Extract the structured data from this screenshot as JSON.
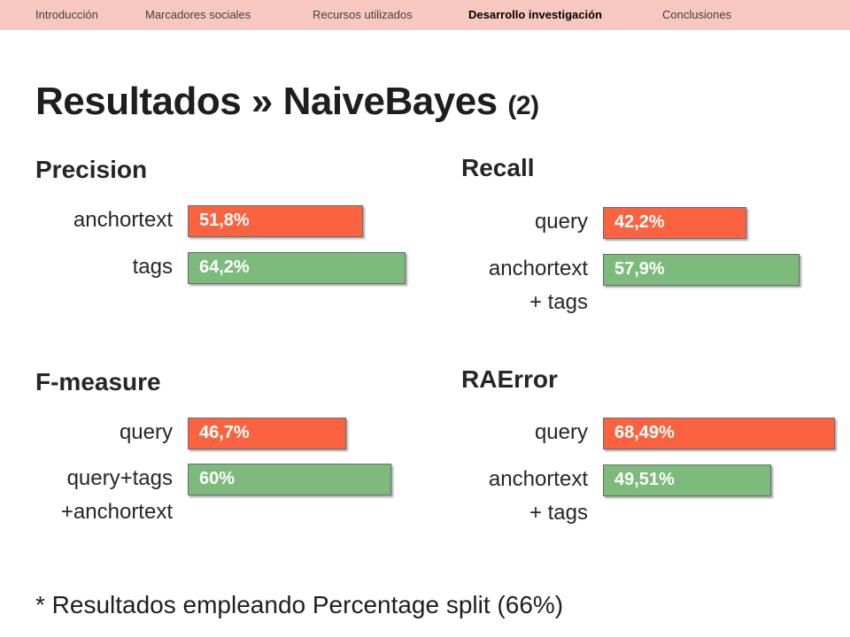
{
  "nav": {
    "items": [
      {
        "label": "Introducción",
        "active": false
      },
      {
        "label": "Marcadores sociales",
        "active": false
      },
      {
        "label": "Recursos utilizados",
        "active": false
      },
      {
        "label": "Desarrollo investigación",
        "active": true
      },
      {
        "label": "Conclusiones",
        "active": false
      }
    ]
  },
  "title": {
    "main": "Resultados » NaiveBayes",
    "suffix": "(2)"
  },
  "footnote": "* Resultados empleando Percentage split (66%)",
  "colors": {
    "orange": "#fb6340",
    "green": "#7cbb7c",
    "nav_bg": "#f8c8c0"
  },
  "chart_data": [
    {
      "type": "bar",
      "title": "Precision",
      "categories": [
        "anchortext",
        "tags"
      ],
      "values": [
        51.8,
        64.2
      ],
      "labels": [
        "51,8%",
        "64,2%"
      ],
      "colors": [
        "#fb6340",
        "#7cbb7c"
      ]
    },
    {
      "type": "bar",
      "title": "Recall",
      "categories": [
        "query",
        "anchortext\n+ tags"
      ],
      "values": [
        42.2,
        57.9
      ],
      "labels": [
        "42,2%",
        "57,9%"
      ],
      "colors": [
        "#fb6340",
        "#7cbb7c"
      ]
    },
    {
      "type": "bar",
      "title": "F-measure",
      "categories": [
        "query",
        "query+tags\n+anchortext"
      ],
      "values": [
        46.7,
        60
      ],
      "labels": [
        "46,7%",
        "60%"
      ],
      "colors": [
        "#fb6340",
        "#7cbb7c"
      ]
    },
    {
      "type": "bar",
      "title": "RAError",
      "categories": [
        "query",
        "anchortext\n+ tags"
      ],
      "values": [
        68.49,
        49.51
      ],
      "labels": [
        "68,49%",
        "49,51%"
      ],
      "colors": [
        "#fb6340",
        "#7cbb7c"
      ]
    }
  ]
}
